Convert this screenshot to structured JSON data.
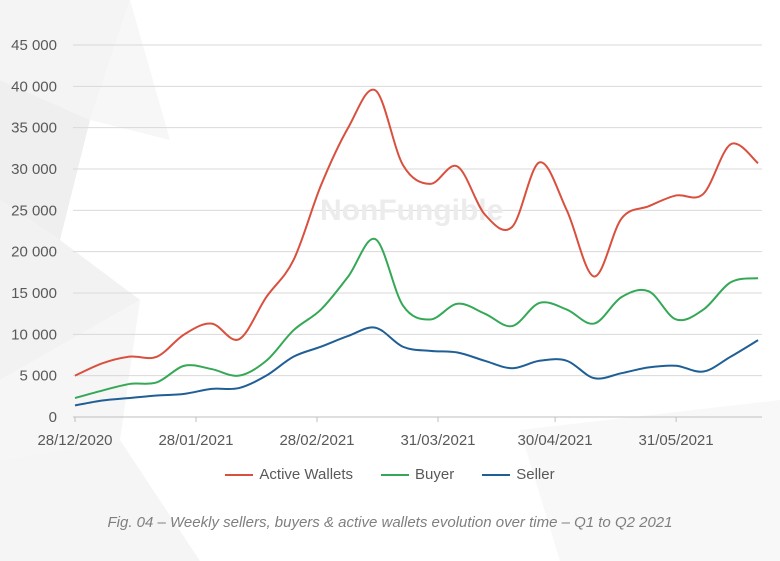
{
  "watermark": "NonFungible",
  "caption": "Fig. 04 – Weekly sellers, buyers & active wallets evolution over time – Q1 to Q2 2021",
  "chart_data": {
    "type": "line",
    "title": "",
    "xlabel": "",
    "ylabel": "",
    "ylim": [
      0,
      45000
    ],
    "yticks": [
      0,
      5000,
      10000,
      15000,
      20000,
      25000,
      30000,
      35000,
      40000,
      45000
    ],
    "ytick_labels": [
      "0",
      "5 000",
      "10 000",
      "15 000",
      "20 000",
      "25 000",
      "30 000",
      "35 000",
      "40 000",
      "45 000"
    ],
    "grid": true,
    "legend_position": "bottom",
    "x_start": "28/12/2020",
    "x_interval_days": 7,
    "xtick_labels": [
      {
        "label": "28/12/2020",
        "day": 0
      },
      {
        "label": "28/01/2021",
        "day": 31
      },
      {
        "label": "28/02/2021",
        "day": 62
      },
      {
        "label": "31/03/2021",
        "day": 93
      },
      {
        "label": "30/04/2021",
        "day": 123
      },
      {
        "label": "31/05/2021",
        "day": 154
      }
    ],
    "series": [
      {
        "name": "Active Wallets",
        "color": "#d9503f",
        "values": [
          5000,
          6500,
          7300,
          7300,
          10000,
          11300,
          9400,
          14500,
          19000,
          28000,
          35000,
          39500,
          30500,
          28200,
          30300,
          24500,
          23000,
          30800,
          25000,
          17000,
          24000,
          25500,
          26800,
          27000,
          33000,
          30700
        ]
      },
      {
        "name": "Buyer",
        "color": "#35a856",
        "values": [
          2300,
          3200,
          4000,
          4200,
          6200,
          5800,
          5000,
          6800,
          10500,
          13000,
          17000,
          21500,
          13500,
          11800,
          13700,
          12500,
          11000,
          13800,
          13000,
          11300,
          14500,
          15200,
          11800,
          13000,
          16300,
          16800
        ]
      },
      {
        "name": "Seller",
        "color": "#1f5f96",
        "values": [
          1400,
          2000,
          2300,
          2600,
          2800,
          3400,
          3500,
          5000,
          7300,
          8500,
          9800,
          10800,
          8500,
          8000,
          7800,
          6800,
          5900,
          6800,
          6800,
          4700,
          5300,
          6000,
          6200,
          5500,
          7300,
          9300
        ]
      }
    ]
  }
}
